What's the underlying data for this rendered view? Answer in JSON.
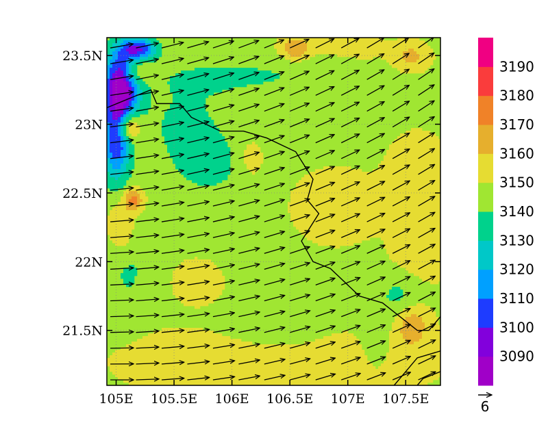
{
  "chart_data": {
    "type": "heatmap",
    "title": "",
    "xlabel": "",
    "ylabel": "",
    "xlim": [
      104.92,
      107.8
    ],
    "ylim": [
      21.1,
      23.63
    ],
    "x_ticks": [
      {
        "value": 105.0,
        "label": "105E"
      },
      {
        "value": 105.5,
        "label": "105.5E"
      },
      {
        "value": 106.0,
        "label": "106E"
      },
      {
        "value": 106.5,
        "label": "106.5E"
      },
      {
        "value": 107.0,
        "label": "107E"
      },
      {
        "value": 107.5,
        "label": "107.5E"
      }
    ],
    "y_ticks": [
      {
        "value": 21.5,
        "label": "21.5N"
      },
      {
        "value": 22.0,
        "label": "22N"
      },
      {
        "value": 22.5,
        "label": "22.5N"
      },
      {
        "value": 23.0,
        "label": "23N"
      },
      {
        "value": 23.5,
        "label": "23.5N"
      }
    ],
    "grid": "dotted lat/lon lines",
    "colorbar": {
      "placement": "right",
      "labels": [
        "3090",
        "3100",
        "3110",
        "3120",
        "3130",
        "3140",
        "3150",
        "3160",
        "3170",
        "3180",
        "3190"
      ],
      "levels": [
        3090,
        3100,
        3110,
        3120,
        3130,
        3140,
        3150,
        3160,
        3170,
        3180,
        3190
      ],
      "colors": [
        "#a000c8",
        "#8200dc",
        "#1e3cff",
        "#00a0ff",
        "#00c8c8",
        "#00d28c",
        "#a0e632",
        "#e6dc32",
        "#e6af2d",
        "#f08228",
        "#fa3c3c",
        "#f00082"
      ]
    },
    "field": {
      "base_value": 3148,
      "regions": [
        {
          "lon": 105.5,
          "lat": 21.3,
          "dlon": 0.5,
          "dlat": 0.2,
          "value": 3155
        },
        {
          "lon": 106.3,
          "lat": 21.2,
          "dlon": 0.8,
          "dlat": 0.15,
          "value": 3156
        },
        {
          "lon": 107.3,
          "lat": 21.3,
          "dlon": 0.5,
          "dlat": 0.2,
          "value": 3156
        },
        {
          "lon": 105.7,
          "lat": 21.85,
          "dlon": 0.2,
          "dlat": 0.15,
          "value": 3156
        },
        {
          "lon": 106.9,
          "lat": 22.4,
          "dlon": 0.35,
          "dlat": 0.25,
          "value": 3156
        },
        {
          "lon": 107.6,
          "lat": 22.6,
          "dlon": 0.25,
          "dlat": 0.3,
          "value": 3157
        },
        {
          "lon": 107.6,
          "lat": 22.0,
          "dlon": 0.25,
          "dlat": 0.2,
          "value": 3156
        },
        {
          "lon": 106.15,
          "lat": 22.75,
          "dlon": 0.12,
          "dlat": 0.15,
          "value": 3156
        },
        {
          "lon": 107.3,
          "lat": 23.55,
          "dlon": 0.6,
          "dlat": 0.1,
          "value": 3155
        },
        {
          "lon": 105.6,
          "lat": 23.0,
          "dlon": 0.4,
          "dlat": 0.3,
          "value": 3138
        },
        {
          "lon": 105.8,
          "lat": 22.7,
          "dlon": 0.3,
          "dlat": 0.2,
          "value": 3136
        },
        {
          "lon": 106.1,
          "lat": 23.35,
          "dlon": 0.9,
          "dlat": 0.15,
          "value": 3139
        },
        {
          "lon": 107.55,
          "lat": 23.55,
          "dlon": 0.3,
          "dlat": 0.1,
          "value": 3140
        },
        {
          "lon": 105.1,
          "lat": 22.0,
          "dlon": 0.2,
          "dlat": 0.4,
          "value": 3138
        },
        {
          "lon": 107.45,
          "lat": 21.75,
          "dlon": 0.2,
          "dlat": 0.2,
          "value": 3136
        },
        {
          "lon": 107.25,
          "lat": 21.35,
          "dlon": 0.15,
          "dlat": 0.2,
          "value": 3138
        },
        {
          "lon": 105.05,
          "lat": 23.3,
          "dlon": 0.15,
          "dlat": 0.25,
          "value": 3085
        },
        {
          "lon": 105.0,
          "lat": 22.9,
          "dlon": 0.12,
          "dlat": 0.3,
          "value": 3100
        },
        {
          "lon": 105.2,
          "lat": 23.55,
          "dlon": 0.15,
          "dlat": 0.08,
          "value": 3105
        },
        {
          "lon": 105.15,
          "lat": 23.38,
          "dlon": 0.12,
          "dlat": 0.1,
          "value": 3175
        },
        {
          "lon": 105.1,
          "lat": 22.98,
          "dlon": 0.1,
          "dlat": 0.1,
          "value": 3185
        },
        {
          "lon": 105.05,
          "lat": 22.25,
          "dlon": 0.12,
          "dlat": 0.2,
          "value": 3165
        },
        {
          "lon": 105.15,
          "lat": 22.45,
          "dlon": 0.08,
          "dlat": 0.08,
          "value": 3175
        },
        {
          "lon": 107.55,
          "lat": 21.55,
          "dlon": 0.15,
          "dlat": 0.15,
          "value": 3168
        },
        {
          "lon": 107.55,
          "lat": 23.5,
          "dlon": 0.15,
          "dlat": 0.1,
          "value": 3165
        },
        {
          "lon": 106.55,
          "lat": 23.55,
          "dlon": 0.12,
          "dlat": 0.08,
          "value": 3170
        }
      ]
    },
    "wind": {
      "rows": 22,
      "cols": 13,
      "lon_start": 104.95,
      "lat_start": 21.14,
      "reference_vector": "6"
    },
    "boundaries": [
      {
        "name": "border-1",
        "points": [
          [
            104.92,
            23.12
          ],
          [
            105.15,
            23.2
          ],
          [
            105.3,
            23.25
          ],
          [
            105.35,
            23.15
          ],
          [
            105.55,
            23.15
          ],
          [
            105.65,
            23.05
          ],
          [
            105.9,
            22.95
          ],
          [
            106.1,
            22.95
          ],
          [
            106.3,
            22.9
          ],
          [
            106.55,
            22.8
          ],
          [
            106.7,
            22.6
          ],
          [
            106.65,
            22.45
          ],
          [
            106.75,
            22.35
          ],
          [
            106.6,
            22.15
          ],
          [
            106.7,
            22.0
          ],
          [
            106.85,
            21.95
          ],
          [
            107.1,
            21.75
          ],
          [
            107.3,
            21.7
          ],
          [
            107.45,
            21.6
          ],
          [
            107.6,
            21.5
          ],
          [
            107.7,
            21.5
          ],
          [
            107.8,
            21.6
          ]
        ]
      },
      {
        "name": "coast-1",
        "points": [
          [
            107.8,
            21.35
          ],
          [
            107.6,
            21.3
          ],
          [
            107.5,
            21.2
          ],
          [
            107.4,
            21.1
          ]
        ]
      },
      {
        "name": "coast-2",
        "points": [
          [
            107.8,
            21.2
          ],
          [
            107.65,
            21.15
          ],
          [
            107.6,
            21.1
          ]
        ]
      }
    ]
  }
}
